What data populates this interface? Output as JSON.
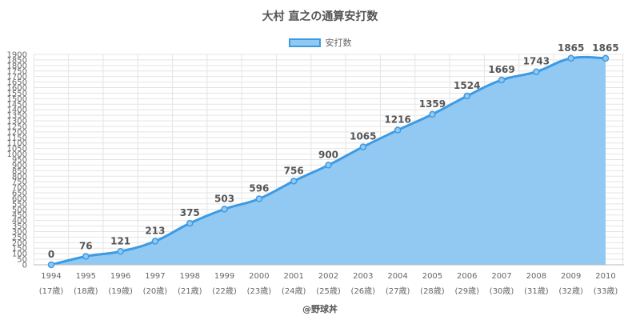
{
  "title": "大村 直之の通算安打数",
  "legend": {
    "label": "安打数"
  },
  "credit": "@野球丼",
  "colors": {
    "line": "#3d9ae2",
    "fill": "#92c9f2",
    "grid": "#e4e4e4"
  },
  "chart_data": {
    "type": "area",
    "title": "大村 直之の通算安打数",
    "categories": [
      "1994",
      "1995",
      "1996",
      "1997",
      "1998",
      "1999",
      "2000",
      "2001",
      "2002",
      "2003",
      "2004",
      "2005",
      "2006",
      "2007",
      "2008",
      "2009",
      "2010"
    ],
    "category_sublabels": [
      "(17歳)",
      "(18歳)",
      "(19歳)",
      "(20歳)",
      "(21歳)",
      "(22歳)",
      "(23歳)",
      "(24歳)",
      "(25歳)",
      "(26歳)",
      "(27歳)",
      "(28歳)",
      "(29歳)",
      "(30歳)",
      "(31歳)",
      "(32歳)",
      "(33歳)"
    ],
    "series": [
      {
        "name": "安打数",
        "values": [
          0,
          76,
          121,
          213,
          375,
          503,
          596,
          756,
          900,
          1065,
          1216,
          1359,
          1524,
          1669,
          1743,
          1865,
          1865
        ]
      }
    ],
    "ylim": [
      0,
      1900
    ],
    "ytick_step": 50,
    "grid": true,
    "legend_position": "top-center"
  }
}
